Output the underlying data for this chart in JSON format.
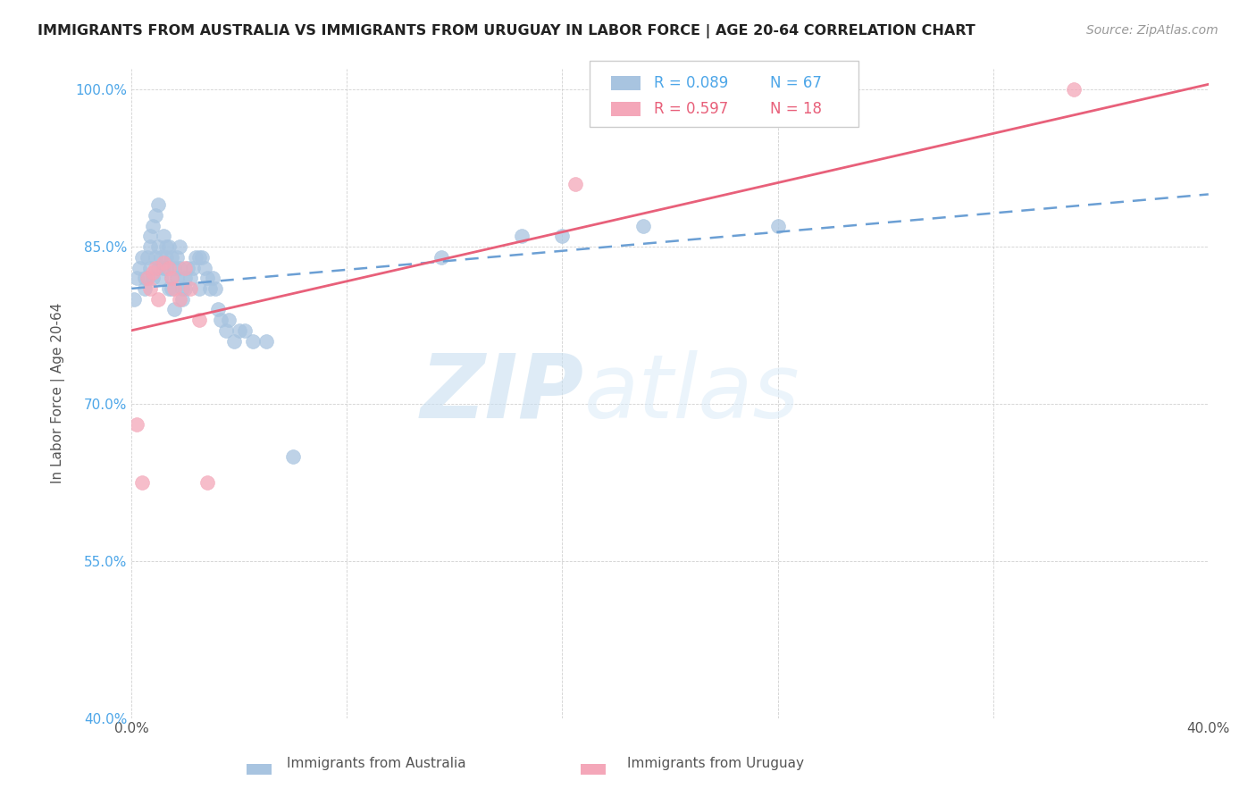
{
  "title": "IMMIGRANTS FROM AUSTRALIA VS IMMIGRANTS FROM URUGUAY IN LABOR FORCE | AGE 20-64 CORRELATION CHART",
  "source": "Source: ZipAtlas.com",
  "ylabel": "In Labor Force | Age 20-64",
  "xlim": [
    0.0,
    0.4
  ],
  "ylim": [
    0.4,
    1.02
  ],
  "xticks": [
    0.0,
    0.08,
    0.16,
    0.24,
    0.32,
    0.4
  ],
  "xticklabels": [
    "0.0%",
    "",
    "",
    "",
    "",
    "40.0%"
  ],
  "yticks": [
    0.4,
    0.55,
    0.7,
    0.85,
    1.0
  ],
  "yticklabels": [
    "40.0%",
    "55.0%",
    "70.0%",
    "85.0%",
    "100.0%"
  ],
  "australia_R": 0.089,
  "australia_N": 67,
  "uruguay_R": 0.597,
  "uruguay_N": 18,
  "australia_color": "#a8c4e0",
  "uruguay_color": "#f4a7b9",
  "trend_australia_color": "#6b9fd4",
  "trend_uruguay_color": "#e8607a",
  "watermark_zip": "ZIP",
  "watermark_atlas": "atlas",
  "australia_x": [
    0.001,
    0.002,
    0.003,
    0.004,
    0.005,
    0.005,
    0.006,
    0.006,
    0.007,
    0.007,
    0.007,
    0.008,
    0.008,
    0.009,
    0.009,
    0.01,
    0.01,
    0.01,
    0.011,
    0.011,
    0.012,
    0.012,
    0.013,
    0.013,
    0.013,
    0.014,
    0.014,
    0.015,
    0.015,
    0.015,
    0.016,
    0.016,
    0.017,
    0.017,
    0.018,
    0.018,
    0.019,
    0.019,
    0.02,
    0.02,
    0.021,
    0.022,
    0.023,
    0.024,
    0.025,
    0.025,
    0.026,
    0.027,
    0.028,
    0.029,
    0.03,
    0.031,
    0.032,
    0.033,
    0.035,
    0.036,
    0.038,
    0.04,
    0.042,
    0.045,
    0.05,
    0.06,
    0.115,
    0.145,
    0.16,
    0.19,
    0.24
  ],
  "australia_y": [
    0.8,
    0.82,
    0.83,
    0.84,
    0.81,
    0.82,
    0.82,
    0.84,
    0.83,
    0.85,
    0.86,
    0.87,
    0.82,
    0.88,
    0.84,
    0.83,
    0.85,
    0.89,
    0.84,
    0.82,
    0.83,
    0.86,
    0.84,
    0.85,
    0.83,
    0.81,
    0.85,
    0.84,
    0.82,
    0.81,
    0.83,
    0.79,
    0.84,
    0.82,
    0.85,
    0.83,
    0.81,
    0.8,
    0.81,
    0.82,
    0.83,
    0.82,
    0.83,
    0.84,
    0.84,
    0.81,
    0.84,
    0.83,
    0.82,
    0.81,
    0.82,
    0.81,
    0.79,
    0.78,
    0.77,
    0.78,
    0.76,
    0.77,
    0.77,
    0.76,
    0.76,
    0.65,
    0.84,
    0.86,
    0.86,
    0.87,
    0.87
  ],
  "uruguay_x": [
    0.002,
    0.004,
    0.006,
    0.007,
    0.008,
    0.009,
    0.01,
    0.012,
    0.014,
    0.015,
    0.016,
    0.018,
    0.02,
    0.022,
    0.025,
    0.028,
    0.165,
    0.35
  ],
  "uruguay_y": [
    0.68,
    0.625,
    0.82,
    0.81,
    0.825,
    0.83,
    0.8,
    0.835,
    0.83,
    0.82,
    0.81,
    0.8,
    0.83,
    0.81,
    0.78,
    0.625,
    0.91,
    1.0
  ],
  "aus_trend_x0": 0.0,
  "aus_trend_x1": 0.4,
  "aus_trend_y0": 0.81,
  "aus_trend_y1": 0.9,
  "uru_trend_x0": 0.0,
  "uru_trend_x1": 0.4,
  "uru_trend_y0": 0.77,
  "uru_trend_y1": 1.005
}
